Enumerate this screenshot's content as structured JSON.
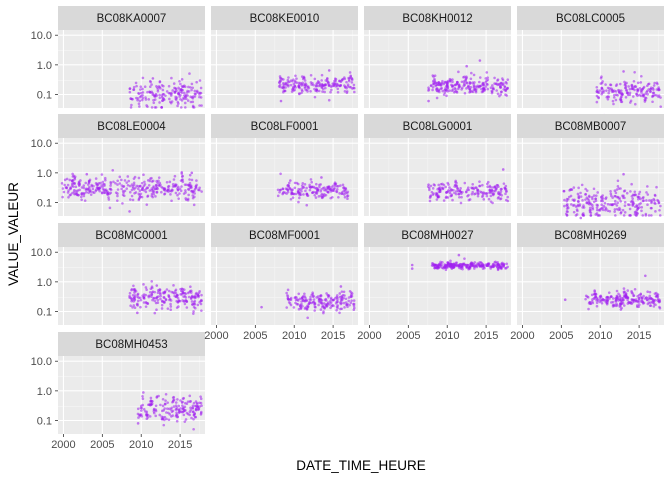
{
  "chart_data": {
    "type": "scatter",
    "facet_layout": {
      "ncol": 4,
      "nrow": 4
    },
    "xlabel": "DATE_TIME_HEURE",
    "ylabel": "VALUE_VALEUR",
    "y_scale": "log10",
    "xlim": [
      1999.3,
      2018.2
    ],
    "ylim": [
      0.035,
      15
    ],
    "x_ticks": [
      2000,
      2005,
      2010,
      2015
    ],
    "x_tick_labels": [
      "2000",
      "2005",
      "2010",
      "2015"
    ],
    "y_ticks": [
      0.1,
      1.0,
      10.0
    ],
    "y_tick_labels": [
      "0.1",
      "1.0",
      "10.0"
    ],
    "grid": true,
    "point_color": "#a020f0",
    "panel_background": "#ebebeb",
    "strip_background": "#d9d9d9",
    "panels": [
      {
        "name": "BC08KA0007",
        "x_range": [
          2008.5,
          2017.8
        ],
        "y_center": 0.11,
        "spread": 0.28,
        "n": 190,
        "outliers": [
          [
            2011.5,
            0.35
          ]
        ]
      },
      {
        "name": "BC08KE0010",
        "x_range": [
          2008.0,
          2017.8
        ],
        "y_center": 0.22,
        "spread": 0.17,
        "n": 200,
        "outliers": [
          [
            2014.5,
            0.65
          ],
          [
            2008.3,
            0.06
          ]
        ]
      },
      {
        "name": "BC08KH0012",
        "x_range": [
          2007.5,
          2017.8
        ],
        "y_center": 0.2,
        "spread": 0.2,
        "n": 230,
        "outliers": [
          [
            2014.2,
            1.4
          ],
          [
            2012.5,
            0.9
          ],
          [
            2007.6,
            0.06
          ]
        ]
      },
      {
        "name": "BC08LC0005",
        "x_range": [
          2009.5,
          2017.8
        ],
        "y_center": 0.13,
        "spread": 0.24,
        "n": 170,
        "outliers": [
          [
            2010.5,
            0.02
          ],
          [
            2013.0,
            0.6
          ]
        ]
      },
      {
        "name": "BC08LE0004",
        "x_range": [
          1999.8,
          2017.8
        ],
        "y_center": 0.3,
        "spread": 0.22,
        "n": 360,
        "outliers": [
          [
            2003.0,
            0.9
          ],
          [
            2008.5,
            0.05
          ],
          [
            2016.5,
            1.0
          ]
        ]
      },
      {
        "name": "BC08LF0001",
        "x_range": [
          2007.8,
          2017.0
        ],
        "y_center": 0.25,
        "spread": 0.18,
        "n": 170,
        "outliers": [
          [
            2013.5,
            0.7
          ],
          [
            2009.5,
            0.55
          ]
        ]
      },
      {
        "name": "BC08LG0001",
        "x_range": [
          2007.5,
          2017.8
        ],
        "y_center": 0.25,
        "spread": 0.18,
        "n": 190,
        "outliers": [
          [
            2007.6,
            0.4
          ],
          [
            2017.2,
            1.3
          ]
        ]
      },
      {
        "name": "BC08MB0007",
        "x_range": [
          2005.2,
          2017.8
        ],
        "y_center": 0.1,
        "spread": 0.32,
        "n": 260,
        "outliers": [
          [
            2013.0,
            0.9
          ],
          [
            2007.5,
            0.03
          ]
        ]
      },
      {
        "name": "BC08MC0001",
        "x_range": [
          2008.5,
          2017.8
        ],
        "y_center": 0.3,
        "spread": 0.22,
        "n": 210,
        "outliers": [
          [
            2012.0,
            0.75
          ],
          [
            2009.5,
            0.09
          ]
        ]
      },
      {
        "name": "BC08MF0001",
        "x_range": [
          2009.0,
          2017.8
        ],
        "y_center": 0.22,
        "spread": 0.2,
        "n": 190,
        "outliers": [
          [
            2005.8,
            0.14
          ],
          [
            2016.0,
            0.7
          ]
        ]
      },
      {
        "name": "BC08MH0027",
        "x_range": [
          2008.0,
          2017.8
        ],
        "y_center": 3.5,
        "spread": 0.07,
        "n": 240,
        "outliers": [
          [
            2005.5,
            3.7
          ],
          [
            2005.5,
            2.8
          ],
          [
            2011.5,
            8.0
          ]
        ]
      },
      {
        "name": "BC08MH0269",
        "x_range": [
          2008.0,
          2017.8
        ],
        "y_center": 0.25,
        "spread": 0.16,
        "n": 220,
        "outliers": [
          [
            2005.5,
            0.25
          ],
          [
            2015.8,
            1.6
          ]
        ]
      },
      {
        "name": "BC08MH0453",
        "x_range": [
          2009.5,
          2017.8
        ],
        "y_center": 0.25,
        "spread": 0.25,
        "n": 180,
        "outliers": [
          [
            2012.0,
            0.6
          ],
          [
            2009.6,
            0.08
          ]
        ]
      }
    ]
  }
}
